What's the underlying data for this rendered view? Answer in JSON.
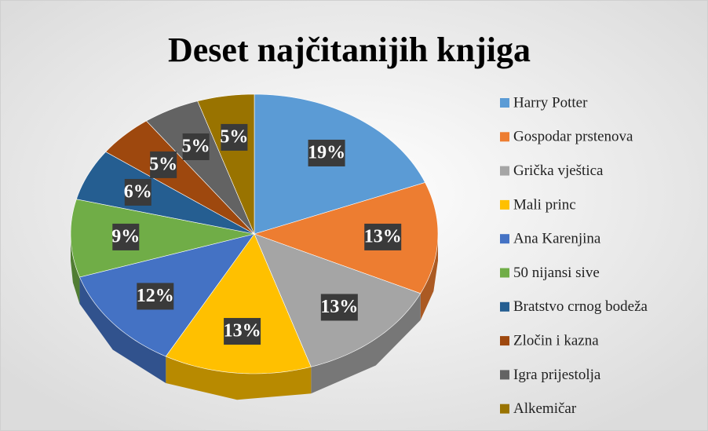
{
  "chart_data": {
    "type": "pie",
    "title": "Deset najčitanijih knjiga",
    "categories": [
      "Harry Potter",
      "Gospodar prstenova",
      "Grička vještica",
      "Mali princ",
      "Ana Karenjina",
      "50 nijansi sive",
      "Bratstvo crnog bodeža",
      "Zločin i kazna",
      "Igra prijestolja",
      "Alkemičar"
    ],
    "values": [
      19,
      13,
      13,
      13,
      12,
      9,
      6,
      5,
      5,
      5
    ],
    "value_labels": [
      "19%",
      "13%",
      "13%",
      "13%",
      "12%",
      "9%",
      "6%",
      "5%",
      "5%",
      "5%"
    ],
    "colors": [
      "#5b9bd5",
      "#ed7d31",
      "#a5a5a5",
      "#ffc000",
      "#4472c4",
      "#70ad47",
      "#255e91",
      "#9e480e",
      "#636363",
      "#997300"
    ],
    "legend": "right"
  }
}
